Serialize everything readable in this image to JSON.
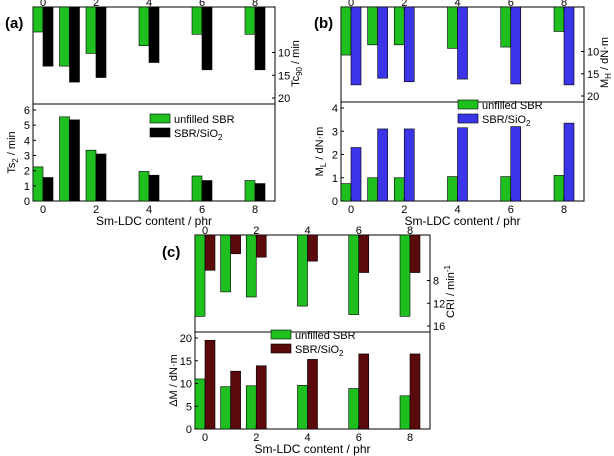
{
  "panel_labels": [
    "(a)",
    "(b)",
    "(c)"
  ],
  "legend": {
    "series1": "unfilled SBR",
    "series2": "SBR/SiO",
    "series2_sub": "2"
  },
  "colors": {
    "series1": "#1fbf1f",
    "series2_a": "#000000",
    "series2_b": "#3b34e8",
    "series2_c": "#5a0a0a",
    "axis": "#000000"
  },
  "chart_data": [
    {
      "id": "a-top",
      "panel": "(a)",
      "type": "bar",
      "orientation": "inverted",
      "ylabel": "Tc",
      "ylabel_sub": "90",
      "ylabel_unit": " / min",
      "x_ticks": [
        "0",
        "2",
        "4",
        "6",
        "8"
      ],
      "x": [
        0,
        1,
        2,
        4,
        6,
        8
      ],
      "ylim": [
        0,
        20
      ],
      "y_ticks": [
        "10",
        "15",
        "20"
      ],
      "series": [
        {
          "name": "unfilled SBR",
          "values": [
            5.5,
            13.0,
            10.2,
            8.5,
            6.0,
            6.0
          ]
        },
        {
          "name": "SBR/SiO2",
          "values": [
            13.0,
            16.5,
            15.5,
            12.2,
            13.8,
            13.8
          ]
        }
      ]
    },
    {
      "id": "a-bottom",
      "panel": "(a)",
      "type": "bar",
      "ylabel": "Ts",
      "ylabel_sub": "2",
      "ylabel_unit": " / min",
      "xlabel": "Sm-LDC content / phr",
      "x_ticks": [
        "0",
        "2",
        "4",
        "6",
        "8"
      ],
      "x": [
        0,
        1,
        2,
        4,
        6,
        8
      ],
      "ylim": [
        0,
        6
      ],
      "y_ticks": [
        "0",
        "1",
        "2",
        "3",
        "4",
        "5",
        "6"
      ],
      "series": [
        {
          "name": "unfilled SBR",
          "values": [
            2.25,
            5.55,
            3.35,
            1.95,
            1.65,
            1.35
          ]
        },
        {
          "name": "SBR/SiO2",
          "values": [
            1.55,
            5.35,
            3.1,
            1.7,
            1.35,
            1.15
          ]
        }
      ]
    },
    {
      "id": "b-top",
      "panel": "(b)",
      "type": "bar",
      "orientation": "inverted",
      "ylabel": "M",
      "ylabel_sub": "H",
      "ylabel_unit": " / dN·m",
      "x_ticks": [
        "0",
        "2",
        "4",
        "6",
        "8"
      ],
      "x": [
        0,
        1,
        2,
        4,
        6,
        8
      ],
      "ylim": [
        0,
        20
      ],
      "y_ticks": [
        "10",
        "15",
        "20"
      ],
      "series": [
        {
          "name": "unfilled SBR",
          "values": [
            10.8,
            8.5,
            8.5,
            9.3,
            9.0,
            5.5
          ]
        },
        {
          "name": "SBR/SiO2",
          "values": [
            17.5,
            16.0,
            16.8,
            16.2,
            17.3,
            17.5
          ]
        }
      ]
    },
    {
      "id": "b-bottom",
      "panel": "(b)",
      "type": "bar",
      "ylabel": "M",
      "ylabel_sub": "L",
      "ylabel_unit": " / dN·m",
      "xlabel": "Sm-LDC content / phr",
      "x_ticks": [
        "0",
        "2",
        "4",
        "6",
        "8"
      ],
      "x": [
        0,
        1,
        2,
        4,
        6,
        8
      ],
      "ylim": [
        0,
        4
      ],
      "y_ticks": [
        "0",
        "1",
        "2",
        "3",
        "4"
      ],
      "series": [
        {
          "name": "unfilled SBR",
          "values": [
            0.75,
            1.0,
            1.0,
            1.05,
            1.05,
            1.1
          ]
        },
        {
          "name": "SBR/SiO2",
          "values": [
            2.3,
            3.1,
            3.1,
            3.15,
            3.2,
            3.35
          ]
        }
      ]
    },
    {
      "id": "c-top",
      "panel": "(c)",
      "type": "bar",
      "orientation": "inverted",
      "ylabel": "CRI / min",
      "ylabel_sup": "-1",
      "x_ticks": [
        "0",
        "2",
        "4",
        "6",
        "8"
      ],
      "x": [
        0,
        1,
        2,
        4,
        6,
        8
      ],
      "ylim": [
        0,
        16
      ],
      "y_ticks": [
        "8",
        "12",
        "16"
      ],
      "series": [
        {
          "name": "unfilled SBR",
          "values": [
            14.3,
            10.0,
            10.9,
            12.5,
            14.0,
            14.3
          ]
        },
        {
          "name": "SBR/SiO2",
          "values": [
            6.2,
            3.3,
            3.9,
            4.6,
            6.6,
            6.6
          ]
        }
      ]
    },
    {
      "id": "c-bottom",
      "panel": "(c)",
      "type": "bar",
      "ylabel": "ΔM / dN·m",
      "xlabel": "Sm-LDC content / phr",
      "x_ticks": [
        "0",
        "2",
        "4",
        "6",
        "8"
      ],
      "x": [
        0,
        1,
        2,
        4,
        6,
        8
      ],
      "ylim": [
        0,
        20
      ],
      "y_ticks": [
        "0",
        "5",
        "10",
        "15",
        "20"
      ],
      "series": [
        {
          "name": "unfilled SBR",
          "values": [
            11.0,
            9.3,
            9.5,
            9.6,
            8.9,
            7.3
          ]
        },
        {
          "name": "SBR/SiO2",
          "values": [
            19.5,
            12.7,
            13.9,
            15.3,
            16.5,
            16.5
          ]
        }
      ]
    }
  ]
}
